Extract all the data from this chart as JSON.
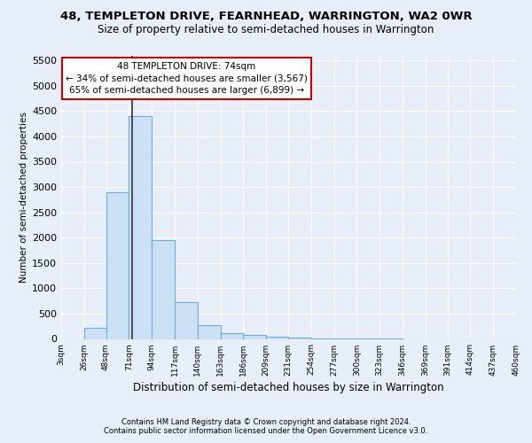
{
  "title": "48, TEMPLETON DRIVE, FEARNHEAD, WARRINGTON, WA2 0WR",
  "subtitle": "Size of property relative to semi-detached houses in Warrington",
  "xlabel": "Distribution of semi-detached houses by size in Warrington",
  "ylabel": "Number of semi-detached properties",
  "footer1": "Contains HM Land Registry data © Crown copyright and database right 2024.",
  "footer2": "Contains public sector information licensed under the Open Government Licence v3.0.",
  "bin_edges": [
    3,
    26,
    48,
    71,
    94,
    117,
    140,
    163,
    186,
    209,
    231,
    254,
    277,
    300,
    323,
    346,
    369,
    391,
    414,
    437,
    460
  ],
  "bar_heights": [
    0,
    220,
    2900,
    4400,
    1950,
    730,
    280,
    120,
    80,
    50,
    30,
    10,
    5,
    2,
    1,
    0,
    0,
    0,
    0,
    0
  ],
  "bar_color": "#cce0f5",
  "bar_edgecolor": "#6aaed6",
  "property_size": 74,
  "annotation_title": "48 TEMPLETON DRIVE: 74sqm",
  "annotation_line1": "← 34% of semi-detached houses are smaller (3,567)",
  "annotation_line2": "65% of semi-detached houses are larger (6,899) →",
  "annotation_box_color": "#cc0000",
  "vline_color": "#333333",
  "ylim": [
    0,
    5600
  ],
  "yticks": [
    0,
    500,
    1000,
    1500,
    2000,
    2500,
    3000,
    3500,
    4000,
    4500,
    5000,
    5500
  ],
  "background_color": "#e8eef8",
  "grid_color": "#ffffff",
  "title_fontsize": 9.5,
  "subtitle_fontsize": 8.5
}
